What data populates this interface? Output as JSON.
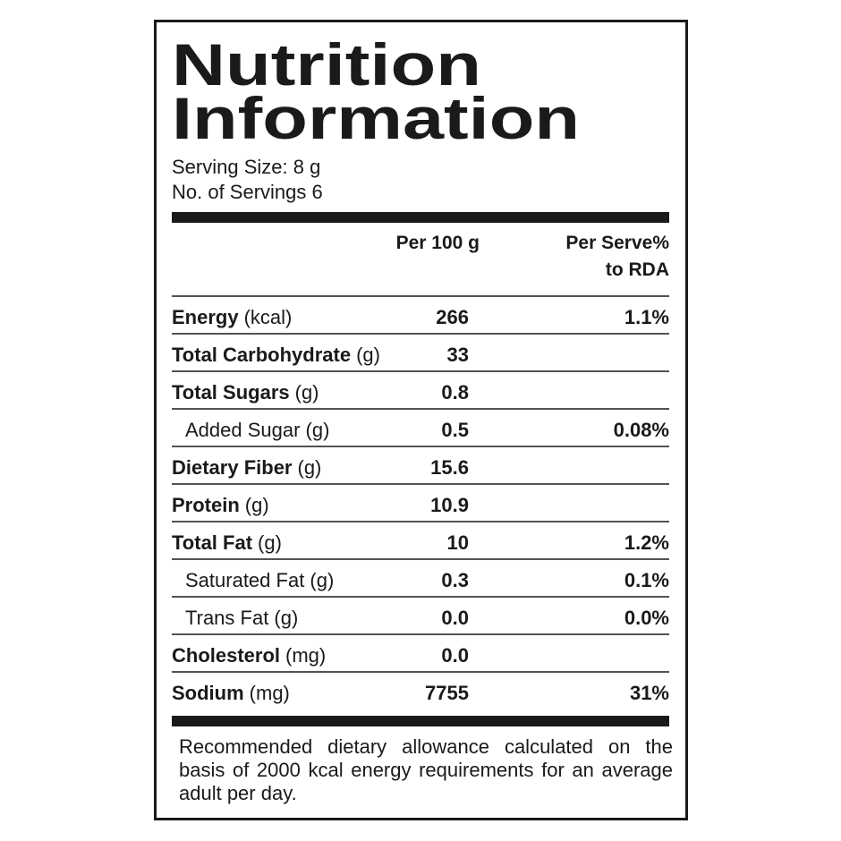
{
  "header": {
    "title_line1": "Nutrition",
    "title_line2": "Information",
    "serving_size": "Serving Size: 8 g",
    "servings": "No. of Servings 6"
  },
  "table": {
    "columns": [
      "Per 100 g",
      "Per Serve%",
      "to RDA"
    ],
    "rows": [
      {
        "name": "Energy",
        "unit": "(kcal)",
        "per_100g": "266",
        "rda": "1.1%"
      },
      {
        "name": "Total Carbohydrate",
        "unit": "(g)",
        "per_100g": "33"
      },
      {
        "name": "Total Sugars",
        "unit": "(g)",
        "per_100g": "0.8",
        "children": [
          {
            "name": "Added Sugar (g)",
            "per_100g": "0.5",
            "rda": "0.08%"
          }
        ]
      },
      {
        "name": "Dietary Fiber",
        "unit": "(g)",
        "per_100g": "15.6"
      },
      {
        "name": "Protein",
        "unit": "(g)",
        "per_100g": "10.9"
      },
      {
        "name": "Total Fat",
        "unit": "(g)",
        "per_100g": "10",
        "rda": "1.2%",
        "children": [
          {
            "name": "Saturated Fat (g)",
            "per_100g": "0.3",
            "rda": "0.1%"
          },
          {
            "name": "Trans Fat (g)",
            "per_100g": "0.0",
            "rda": "0.0%"
          }
        ]
      },
      {
        "name": "Cholesterol",
        "unit": "(mg)",
        "per_100g": "0.0"
      },
      {
        "name": "Sodium",
        "unit": "(mg)",
        "per_100g": "7755",
        "rda": "31%"
      }
    ]
  },
  "footnote": "Recommended dietary allowance calculated on the basis of 2000 kcal energy requirements for an average adult per day."
}
